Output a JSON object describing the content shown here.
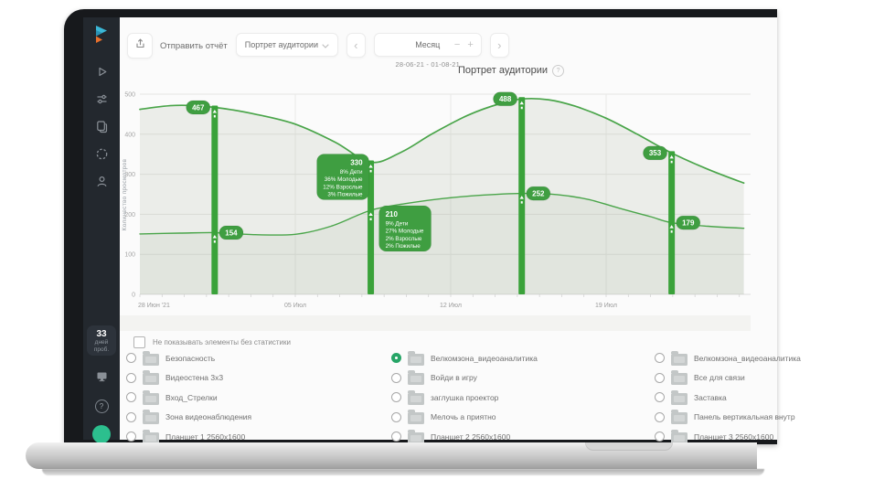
{
  "icons": {
    "chevron_down": "⌄",
    "prev": "‹",
    "next": "›",
    "minus": "−",
    "plus": "+",
    "info": "?",
    "help": "?"
  },
  "toolbar": {
    "send_report": "Отправить отчёт",
    "report_select": "Портрет аудитории",
    "period": "Месяц",
    "date_range": "28-06-21 - 01-08-21"
  },
  "sidebar": {
    "trial": {
      "days": "33",
      "caption_line1": "дней",
      "caption_line2": "проб."
    }
  },
  "chart_data": {
    "type": "line",
    "title": "Портрет аудитории",
    "ylabel": "Количество просмотров",
    "ylim": [
      0,
      500
    ],
    "yticks": [
      0,
      100,
      200,
      300,
      400,
      500
    ],
    "x_ticks": [
      {
        "day": 0,
        "label": "28 Июн '21"
      },
      {
        "day": 7,
        "label": "05 Июл"
      },
      {
        "day": 14,
        "label": "12 Июл"
      },
      {
        "day": 21,
        "label": "19 Июл"
      }
    ],
    "days_visible": 27.2,
    "grid": true,
    "legend": "none",
    "series": [
      {
        "name": "upper",
        "points": [
          [
            0,
            462
          ],
          [
            1.6,
            472
          ],
          [
            3.37,
            467
          ],
          [
            5.2,
            450
          ],
          [
            7,
            425
          ],
          [
            8.8,
            380
          ],
          [
            10.4,
            330
          ],
          [
            11.8,
            356
          ],
          [
            13.2,
            402
          ],
          [
            14.8,
            448
          ],
          [
            16.2,
            476
          ],
          [
            17.2,
            488
          ],
          [
            18.4,
            486
          ],
          [
            19.6,
            470
          ],
          [
            21,
            440
          ],
          [
            22.4,
            400
          ],
          [
            23.95,
            353
          ],
          [
            25.6,
            312
          ],
          [
            27.2,
            278
          ]
        ]
      },
      {
        "name": "lower",
        "points": [
          [
            0,
            151
          ],
          [
            1.8,
            153
          ],
          [
            3.37,
            154
          ],
          [
            5.2,
            149
          ],
          [
            7,
            150
          ],
          [
            8.6,
            170
          ],
          [
            10.4,
            210
          ],
          [
            12,
            227
          ],
          [
            13.6,
            239
          ],
          [
            15.2,
            247
          ],
          [
            17.2,
            252
          ],
          [
            18.8,
            249
          ],
          [
            20.2,
            237
          ],
          [
            21.6,
            215
          ],
          [
            23,
            194
          ],
          [
            23.95,
            179
          ],
          [
            25.6,
            170
          ],
          [
            27.2,
            165
          ]
        ]
      }
    ],
    "markers": [
      {
        "day": 3.37,
        "top": 467,
        "bottom": 154
      },
      {
        "day": 10.4,
        "top": 330,
        "bottom": 210,
        "top_breakdown": [
          "8% Дети",
          "36% Молодые",
          "12% Взрослые",
          "3% Пожилые"
        ],
        "bottom_breakdown": [
          "9% Дети",
          "27% Молодые",
          "2% Взрослые",
          "2% Пожилые"
        ]
      },
      {
        "day": 17.2,
        "top": 488,
        "bottom": 252
      },
      {
        "day": 23.95,
        "top": 353,
        "bottom": 179
      }
    ]
  },
  "filters": {
    "hide_empty_label": "Не показывать элементы без статистики",
    "checked": false
  },
  "playlists": {
    "columns": [
      [
        {
          "label": "Безопасность",
          "selected": false
        },
        {
          "label": "Видеостена 3х3",
          "selected": false
        },
        {
          "label": "Вход_Стрелки",
          "selected": false
        },
        {
          "label": "Зона видеонаблюдения",
          "selected": false
        },
        {
          "label": "Планшет 1 2560х1600",
          "selected": false
        }
      ],
      [
        {
          "label": "Велкомзона_видеоаналитика",
          "selected": true
        },
        {
          "label": "Войди в игру",
          "selected": false
        },
        {
          "label": "заглушка проектор",
          "selected": false
        },
        {
          "label": "Мелочь а приятно",
          "selected": false
        },
        {
          "label": "Планшет 2 2560х1600",
          "selected": false
        }
      ],
      [
        {
          "label": "Велкомзона_видеоаналитика",
          "selected": false
        },
        {
          "label": "Все для связи",
          "selected": false
        },
        {
          "label": "Заставка",
          "selected": false
        },
        {
          "label": "Панель вертикальная внутр",
          "selected": false
        },
        {
          "label": "Планшет 3 2560х1600",
          "selected": false
        }
      ]
    ]
  },
  "colors": {
    "accent_green": "#3aa23a",
    "line_green": "#4aa54a",
    "badge_green": "#3f9e41",
    "radio_selected_green": "#27a567",
    "sidebar_bg": "#23282e",
    "avatar_green": "#2cbf8e",
    "logo_teal": "#3bb7d6",
    "logo_orange": "#e8702d"
  }
}
